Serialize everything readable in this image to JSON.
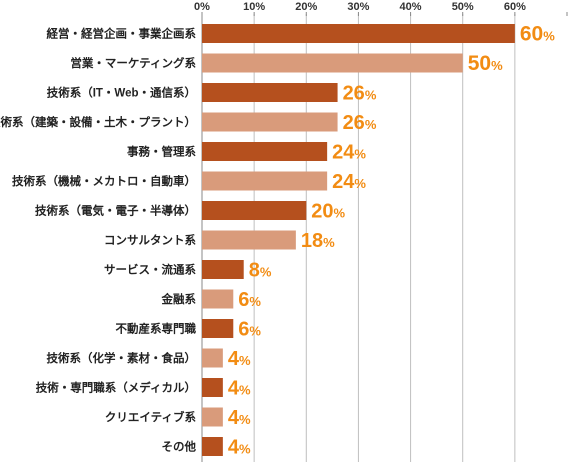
{
  "chart_data": {
    "type": "bar",
    "orientation": "horizontal",
    "categories": [
      "経営・経営企画・事業企画系",
      "営業・マーケティング系",
      "技術系（IT・Web・通信系）",
      "技術系（建築・設備・土木・プラント）",
      "事務・管理系",
      "技術系（機械・メカトロ・自動車）",
      "技術系（電気・電子・半導体）",
      "コンサルタント系",
      "サービス・流通系",
      "金融系",
      "不動産系専門職",
      "技術系（化学・素材・食品）",
      "技術・専門職系（メディカル）",
      "クリエイティブ系",
      "その他"
    ],
    "values": [
      60,
      50,
      26,
      26,
      24,
      24,
      20,
      18,
      8,
      6,
      6,
      4,
      4,
      4,
      4
    ],
    "value_labels": [
      "60",
      "50",
      "26",
      "26",
      "24",
      "24",
      "20",
      "18",
      "8",
      "6",
      "6",
      "4",
      "4",
      "4",
      "4"
    ],
    "value_suffix": "%",
    "x_ticks": [
      "0%",
      "10%",
      "20%",
      "30%",
      "40%",
      "50%",
      "60%"
    ],
    "xlim": [
      0,
      70
    ],
    "grid": true,
    "colors": {
      "dark": "#b5501e",
      "light": "#d99b7b",
      "label": "#f28c13",
      "grid": "#bfbfbf",
      "axis": "#888888"
    }
  }
}
